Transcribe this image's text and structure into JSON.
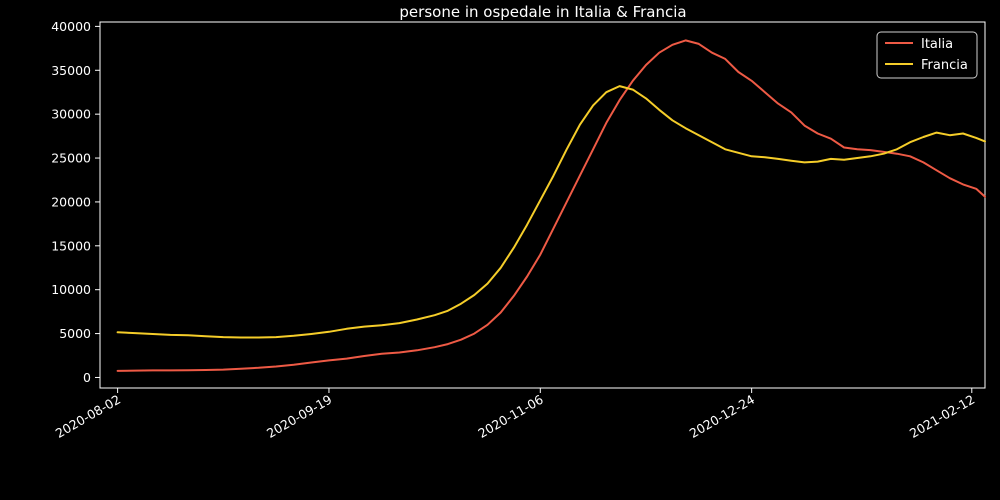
{
  "chart_data": {
    "type": "line",
    "title": "persone in ospedale in Italia & Francia",
    "xlabel": "",
    "ylabel": "",
    "x_axis_type": "date",
    "xlim": [
      "2020-07-29",
      "2021-02-15"
    ],
    "ylim": [
      -1200,
      40500
    ],
    "x_ticks": [
      "2020-08-02",
      "2020-09-19",
      "2020-11-06",
      "2020-12-24",
      "2021-02-12"
    ],
    "y_ticks": [
      0,
      5000,
      10000,
      15000,
      20000,
      25000,
      30000,
      35000,
      40000
    ],
    "y_tick_labels": [
      "0",
      "5000",
      "10000",
      "15000",
      "20000",
      "25000",
      "30000",
      "35000",
      "40000"
    ],
    "grid": false,
    "legend_position": "top-right",
    "background": "#000000",
    "series": [
      {
        "name": "Italia",
        "color": "#ee5a45",
        "points": [
          [
            "2020-08-02",
            750
          ],
          [
            "2020-08-06",
            780
          ],
          [
            "2020-08-10",
            800
          ],
          [
            "2020-08-14",
            810
          ],
          [
            "2020-08-18",
            830
          ],
          [
            "2020-08-22",
            850
          ],
          [
            "2020-08-26",
            900
          ],
          [
            "2020-08-30",
            1000
          ],
          [
            "2020-09-03",
            1100
          ],
          [
            "2020-09-07",
            1250
          ],
          [
            "2020-09-11",
            1450
          ],
          [
            "2020-09-15",
            1700
          ],
          [
            "2020-09-19",
            1950
          ],
          [
            "2020-09-23",
            2150
          ],
          [
            "2020-09-27",
            2450
          ],
          [
            "2020-10-01",
            2700
          ],
          [
            "2020-10-05",
            2850
          ],
          [
            "2020-10-09",
            3100
          ],
          [
            "2020-10-13",
            3450
          ],
          [
            "2020-10-16",
            3800
          ],
          [
            "2020-10-19",
            4300
          ],
          [
            "2020-10-22",
            5000
          ],
          [
            "2020-10-25",
            6000
          ],
          [
            "2020-10-28",
            7400
          ],
          [
            "2020-10-31",
            9300
          ],
          [
            "2020-11-03",
            11500
          ],
          [
            "2020-11-06",
            14000
          ],
          [
            "2020-11-09",
            17000
          ],
          [
            "2020-11-12",
            20000
          ],
          [
            "2020-11-15",
            23000
          ],
          [
            "2020-11-18",
            26000
          ],
          [
            "2020-11-21",
            29000
          ],
          [
            "2020-11-24",
            31600
          ],
          [
            "2020-11-27",
            33800
          ],
          [
            "2020-11-30",
            35600
          ],
          [
            "2020-12-03",
            37000
          ],
          [
            "2020-12-06",
            37900
          ],
          [
            "2020-12-09",
            38400
          ],
          [
            "2020-12-12",
            38000
          ],
          [
            "2020-12-15",
            37000
          ],
          [
            "2020-12-18",
            36300
          ],
          [
            "2020-12-21",
            34800
          ],
          [
            "2020-12-24",
            33800
          ],
          [
            "2020-12-27",
            32500
          ],
          [
            "2020-12-30",
            31200
          ],
          [
            "2021-01-02",
            30200
          ],
          [
            "2021-01-05",
            28700
          ],
          [
            "2021-01-08",
            27800
          ],
          [
            "2021-01-11",
            27200
          ],
          [
            "2021-01-14",
            26200
          ],
          [
            "2021-01-17",
            26000
          ],
          [
            "2021-01-20",
            25900
          ],
          [
            "2021-01-23",
            25700
          ],
          [
            "2021-01-26",
            25500
          ],
          [
            "2021-01-29",
            25200
          ],
          [
            "2021-02-01",
            24500
          ],
          [
            "2021-02-04",
            23600
          ],
          [
            "2021-02-07",
            22700
          ],
          [
            "2021-02-10",
            22000
          ],
          [
            "2021-02-13",
            21500
          ],
          [
            "2021-02-15",
            20600
          ]
        ]
      },
      {
        "name": "Francia",
        "color": "#f5cd29",
        "points": [
          [
            "2020-08-02",
            5150
          ],
          [
            "2020-08-06",
            5050
          ],
          [
            "2020-08-10",
            4950
          ],
          [
            "2020-08-14",
            4850
          ],
          [
            "2020-08-18",
            4800
          ],
          [
            "2020-08-22",
            4700
          ],
          [
            "2020-08-26",
            4600
          ],
          [
            "2020-08-30",
            4550
          ],
          [
            "2020-09-03",
            4550
          ],
          [
            "2020-09-07",
            4600
          ],
          [
            "2020-09-11",
            4750
          ],
          [
            "2020-09-15",
            4950
          ],
          [
            "2020-09-19",
            5200
          ],
          [
            "2020-09-23",
            5550
          ],
          [
            "2020-09-27",
            5800
          ],
          [
            "2020-10-01",
            5950
          ],
          [
            "2020-10-05",
            6200
          ],
          [
            "2020-10-09",
            6600
          ],
          [
            "2020-10-13",
            7100
          ],
          [
            "2020-10-16",
            7600
          ],
          [
            "2020-10-19",
            8400
          ],
          [
            "2020-10-22",
            9400
          ],
          [
            "2020-10-25",
            10700
          ],
          [
            "2020-10-28",
            12500
          ],
          [
            "2020-10-31",
            14800
          ],
          [
            "2020-11-03",
            17400
          ],
          [
            "2020-11-06",
            20200
          ],
          [
            "2020-11-09",
            23000
          ],
          [
            "2020-11-12",
            26000
          ],
          [
            "2020-11-15",
            28800
          ],
          [
            "2020-11-18",
            31000
          ],
          [
            "2020-11-21",
            32500
          ],
          [
            "2020-11-24",
            33200
          ],
          [
            "2020-11-27",
            32800
          ],
          [
            "2020-11-30",
            31800
          ],
          [
            "2020-12-03",
            30500
          ],
          [
            "2020-12-06",
            29300
          ],
          [
            "2020-12-09",
            28400
          ],
          [
            "2020-12-12",
            27600
          ],
          [
            "2020-12-15",
            26800
          ],
          [
            "2020-12-18",
            26000
          ],
          [
            "2020-12-21",
            25600
          ],
          [
            "2020-12-24",
            25200
          ],
          [
            "2020-12-27",
            25100
          ],
          [
            "2020-12-30",
            24900
          ],
          [
            "2021-01-02",
            24700
          ],
          [
            "2021-01-05",
            24500
          ],
          [
            "2021-01-08",
            24600
          ],
          [
            "2021-01-11",
            24900
          ],
          [
            "2021-01-14",
            24800
          ],
          [
            "2021-01-17",
            25000
          ],
          [
            "2021-01-20",
            25200
          ],
          [
            "2021-01-23",
            25500
          ],
          [
            "2021-01-26",
            26000
          ],
          [
            "2021-01-29",
            26800
          ],
          [
            "2021-02-01",
            27400
          ],
          [
            "2021-02-04",
            27900
          ],
          [
            "2021-02-07",
            27600
          ],
          [
            "2021-02-10",
            27800
          ],
          [
            "2021-02-13",
            27300
          ],
          [
            "2021-02-15",
            26900
          ]
        ]
      }
    ]
  }
}
